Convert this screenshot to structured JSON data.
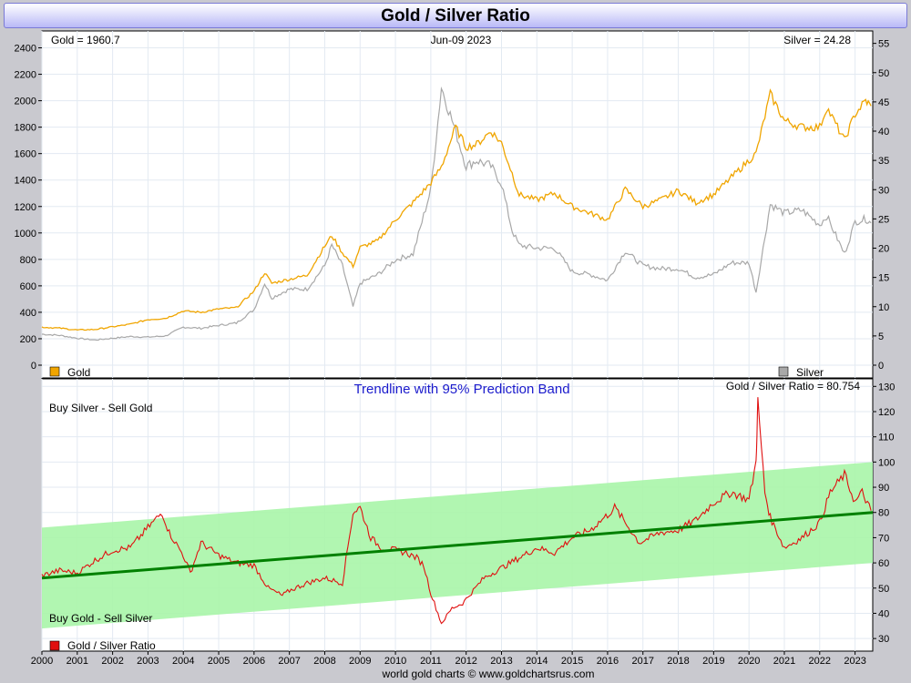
{
  "title": "Gold / Silver Ratio",
  "footer": "world gold charts © www.goldchartsrus.com",
  "colors": {
    "gold": "#f0a500",
    "silver": "#a8a8a8",
    "ratio": "#e01010",
    "trend": "#008000",
    "band": "#a8f5a8",
    "title_text": "#1a1acc"
  },
  "chart_data": [
    {
      "type": "line",
      "panel": "top",
      "date_label": "Jun-09  2023",
      "gold_label": "Gold = 1960.7",
      "silver_label": "Silver = 24.28",
      "left_axis": {
        "ylim": [
          0,
          2500
        ],
        "ticks": [
          0,
          200,
          400,
          600,
          800,
          1000,
          1200,
          1400,
          1600,
          1800,
          2000,
          2200,
          2400
        ]
      },
      "right_axis": {
        "ylim": [
          0,
          56.5
        ],
        "ticks": [
          0,
          5,
          10,
          15,
          20,
          25,
          30,
          35,
          40,
          45,
          50,
          55
        ]
      },
      "legend": [
        "Gold",
        "Silver"
      ],
      "grid": true,
      "x": [
        2000,
        2000.5,
        2001,
        2001.5,
        2002,
        2002.5,
        2003,
        2003.5,
        2004,
        2004.5,
        2005,
        2005.5,
        2006,
        2006.3,
        2006.5,
        2007,
        2007.5,
        2008,
        2008.2,
        2008.5,
        2008.8,
        2009,
        2009.5,
        2010,
        2010.5,
        2011,
        2011.3,
        2011.7,
        2012,
        2012.3,
        2012.7,
        2013,
        2013.3,
        2013.5,
        2014,
        2014.5,
        2015,
        2015.5,
        2016,
        2016.5,
        2017,
        2017.5,
        2018,
        2018.5,
        2019,
        2019.5,
        2020,
        2020.2,
        2020.6,
        2021,
        2021.5,
        2022,
        2022.2,
        2022.7,
        2023,
        2023.3,
        2023.45
      ],
      "series": [
        {
          "name": "Gold",
          "axis": "left",
          "values": [
            288,
            280,
            266,
            270,
            290,
            310,
            345,
            355,
            410,
            400,
            425,
            435,
            560,
            700,
            620,
            650,
            680,
            900,
            980,
            850,
            750,
            890,
            940,
            1100,
            1230,
            1380,
            1500,
            1800,
            1650,
            1670,
            1770,
            1680,
            1450,
            1290,
            1250,
            1300,
            1200,
            1150,
            1100,
            1330,
            1200,
            1250,
            1320,
            1230,
            1290,
            1420,
            1550,
            1600,
            2050,
            1850,
            1800,
            1800,
            1950,
            1700,
            1900,
            2000,
            1960
          ]
        },
        {
          "name": "Silver",
          "axis": "left",
          "values": [
            5.3,
            5.1,
            4.6,
            4.3,
            4.6,
            4.9,
            4.8,
            5.0,
            6.5,
            6.3,
            6.8,
            7.2,
            9.5,
            14.0,
            11.5,
            13.0,
            13.0,
            17.0,
            20.5,
            17.0,
            10.0,
            14.0,
            15.5,
            18.0,
            19.0,
            30.0,
            47.5,
            40.0,
            34.0,
            35.0,
            34.0,
            31.0,
            23.0,
            20.5,
            20.0,
            20.0,
            16.0,
            15.5,
            14.5,
            19.5,
            17.0,
            16.5,
            16.5,
            15.0,
            15.5,
            17.5,
            17.5,
            12.5,
            27.5,
            26.0,
            26.5,
            24.0,
            25.5,
            19.0,
            24.5,
            25.0,
            24.3
          ]
        }
      ]
    },
    {
      "type": "line",
      "panel": "bottom",
      "title": "Trendline with 95% Prediction Band",
      "ratio_label": "Gold / Silver Ratio = 80.754",
      "annotations": [
        "Buy Silver - Sell Gold",
        "Buy Gold - Sell Silver"
      ],
      "legend": [
        "Gold / Silver Ratio"
      ],
      "right_axis": {
        "ylim": [
          25,
          133
        ],
        "ticks": [
          30,
          40,
          50,
          60,
          70,
          80,
          90,
          100,
          110,
          120,
          130
        ]
      },
      "x_ticks": [
        "2000",
        "2001",
        "2002",
        "2003",
        "2004",
        "2005",
        "2006",
        "2007",
        "2008",
        "2009",
        "2010",
        "2011",
        "2012",
        "2013",
        "2014",
        "2015",
        "2016",
        "2017",
        "2018",
        "2019",
        "2020",
        "2021",
        "2022",
        "2023"
      ],
      "xlim": [
        2000,
        2023.5
      ],
      "trendline": {
        "x": [
          2000,
          2023.5
        ],
        "y": [
          54,
          80
        ]
      },
      "band": {
        "upper": [
          74,
          100
        ],
        "lower": [
          34,
          60
        ]
      },
      "x": [
        2000,
        2000.5,
        2001,
        2001.5,
        2002,
        2002.5,
        2003,
        2003.4,
        2003.6,
        2004,
        2004.2,
        2004.5,
        2005,
        2005.5,
        2006,
        2006.4,
        2006.8,
        2007,
        2007.5,
        2008,
        2008.5,
        2008.8,
        2009,
        2009.3,
        2009.6,
        2010,
        2010.3,
        2010.6,
        2010.8,
        2011,
        2011.3,
        2011.6,
        2011.9,
        2012.2,
        2012.5,
        2013,
        2013.5,
        2014,
        2014.5,
        2015,
        2015.5,
        2016,
        2016.2,
        2016.5,
        2016.9,
        2017.5,
        2018,
        2018.5,
        2019,
        2019.5,
        2020,
        2020.2,
        2020.25,
        2020.45,
        2020.6,
        2021,
        2021.5,
        2022,
        2022.3,
        2022.7,
        2023,
        2023.2,
        2023.45
      ],
      "series": [
        {
          "name": "Gold / Silver Ratio",
          "values": [
            55,
            57,
            56,
            61,
            65,
            66,
            74,
            80,
            72,
            63,
            56,
            68,
            63,
            60,
            59,
            50,
            47,
            49,
            52,
            54,
            52,
            80,
            82,
            70,
            66,
            65,
            64,
            62,
            59,
            48,
            36,
            42,
            44,
            49,
            54,
            58,
            62,
            66,
            64,
            70,
            73,
            79,
            82,
            76,
            68,
            72,
            73,
            77,
            84,
            88,
            85,
            100,
            124,
            88,
            78,
            66,
            70,
            76,
            88,
            95,
            84,
            88,
            80.75
          ]
        }
      ]
    }
  ]
}
